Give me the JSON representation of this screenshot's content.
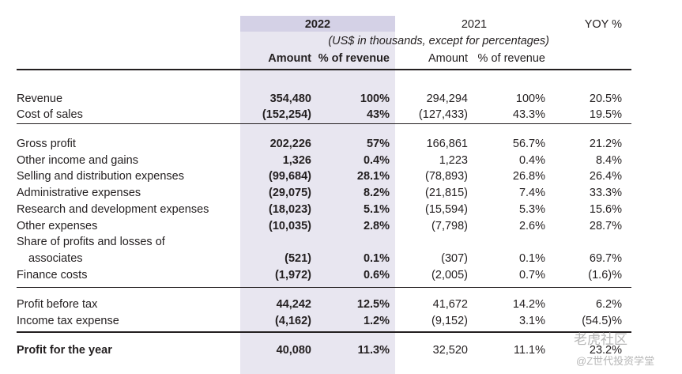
{
  "header": {
    "year_2022": "2022",
    "year_2021": "2021",
    "yoy": "YOY %",
    "subtitle": "(US$ in thousands, except for percentages)",
    "amount_2022": "Amount",
    "pct_2022": "% of revenue",
    "amount_2021": "Amount",
    "pct_2021": "% of revenue"
  },
  "rows": [
    {
      "label": "Revenue",
      "a22": "354,480",
      "p22": "100%",
      "a21": "294,294",
      "p21": "100%",
      "yoy": "20.5%"
    },
    {
      "label": "Cost of sales",
      "a22": "(152,254)",
      "p22": "43%",
      "a21": "(127,433)",
      "p21": "43.3%",
      "yoy": "19.5%"
    },
    {
      "label": "Gross profit",
      "a22": "202,226",
      "p22": "57%",
      "a21": "166,861",
      "p21": "56.7%",
      "yoy": "21.2%"
    },
    {
      "label": "Other income and gains",
      "a22": "1,326",
      "p22": "0.4%",
      "a21": "1,223",
      "p21": "0.4%",
      "yoy": "8.4%"
    },
    {
      "label": "Selling and distribution expenses",
      "a22": "(99,684)",
      "p22": "28.1%",
      "a21": "(78,893)",
      "p21": "26.8%",
      "yoy": "26.4%"
    },
    {
      "label": "Administrative expenses",
      "a22": "(29,075)",
      "p22": "8.2%",
      "a21": "(21,815)",
      "p21": "7.4%",
      "yoy": "33.3%"
    },
    {
      "label": "Research and development expenses",
      "a22": "(18,023)",
      "p22": "5.1%",
      "a21": "(15,594)",
      "p21": "5.3%",
      "yoy": "15.6%"
    },
    {
      "label": "Other expenses",
      "a22": "(10,035)",
      "p22": "2.8%",
      "a21": "(7,798)",
      "p21": "2.6%",
      "yoy": "28.7%"
    },
    {
      "label": "Share of profits and losses of",
      "a22": "",
      "p22": "",
      "a21": "",
      "p21": "",
      "yoy": ""
    },
    {
      "label": "associates",
      "a22": "(521)",
      "p22": "0.1%",
      "a21": "(307)",
      "p21": "0.1%",
      "yoy": "69.7%"
    },
    {
      "label": "Finance costs",
      "a22": "(1,972)",
      "p22": "0.6%",
      "a21": "(2,005)",
      "p21": "0.7%",
      "yoy": "(1.6)%"
    },
    {
      "label": "Profit before tax",
      "a22": "44,242",
      "p22": "12.5%",
      "a21": "41,672",
      "p21": "14.2%",
      "yoy": "6.2%"
    },
    {
      "label": "Income tax expense",
      "a22": "(4,162)",
      "p22": "1.2%",
      "a21": "(9,152)",
      "p21": "3.1%",
      "yoy": "(54.5)%"
    },
    {
      "label": "Profit for the year",
      "a22": "40,080",
      "p22": "11.3%",
      "a21": "32,520",
      "p21": "11.1%",
      "yoy": "23.2%"
    }
  ],
  "watermark": {
    "brand": "老虎社区",
    "handle": "@Z世代投资学堂"
  }
}
